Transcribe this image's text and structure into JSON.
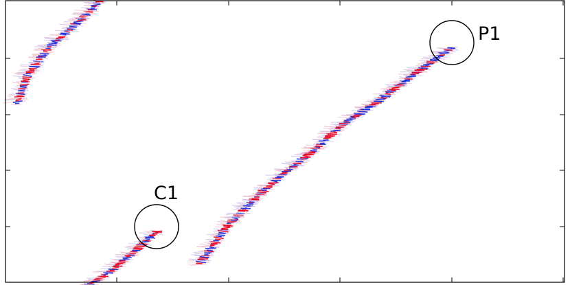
{
  "chart_data": {
    "type": "scatter",
    "title": "",
    "xlabel": "",
    "ylabel": "",
    "xlim": [
      0,
      830
    ],
    "ylim": [
      0,
      415
    ],
    "grid": false,
    "legend": "none",
    "x_ticks": [
      170,
      333,
      495,
      658,
      820
    ],
    "y_ticks": [
      85,
      167,
      248,
      330
    ],
    "series": [
      {
        "points": [
          [
            25,
            150
          ],
          [
            40,
            110
          ],
          [
            70,
            70
          ],
          [
            105,
            40
          ],
          [
            135,
            12
          ],
          [
            145,
            0
          ]
        ]
      },
      {
        "points": [
          [
            290,
            385
          ],
          [
            330,
            330
          ],
          [
            370,
            290
          ],
          [
            410,
            255
          ],
          [
            450,
            225
          ],
          [
            500,
            180
          ],
          [
            550,
            148
          ],
          [
            600,
            110
          ],
          [
            640,
            82
          ],
          [
            660,
            68
          ]
        ]
      },
      {
        "points": [
          [
            130,
            415
          ],
          [
            165,
            392
          ],
          [
            200,
            362
          ],
          [
            225,
            340
          ],
          [
            232,
            335
          ]
        ]
      }
    ],
    "annotations": [
      {
        "label": "P1",
        "x": 658,
        "y": 62
      },
      {
        "label": "C1",
        "x": 228,
        "y": 330
      }
    ],
    "colors": {
      "positive": "#e8001c",
      "negative": "#1a2bd6",
      "axes": "#000000"
    }
  }
}
